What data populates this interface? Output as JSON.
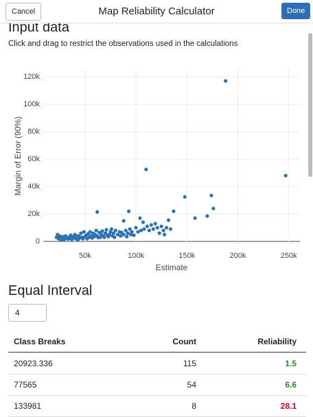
{
  "header": {
    "cancel": "Cancel",
    "title": "Map Reliability Calculator",
    "done": "Done"
  },
  "input_section": {
    "heading": "Input data",
    "instructions": "Click and drag to restrict the observations used in the calculations"
  },
  "chart_data": {
    "type": "scatter",
    "x_label": "Estimate",
    "y_label": "Margin of Error (90%)",
    "color": "#2c72b0",
    "grid": true,
    "xlim": [
      9000,
      261000
    ],
    "ylim": [
      -1500,
      126000
    ],
    "xticks": [
      {
        "value": 50000,
        "label": "50k"
      },
      {
        "value": 100000,
        "label": "100k"
      },
      {
        "value": 150000,
        "label": "150k"
      },
      {
        "value": 200000,
        "label": "200k"
      },
      {
        "value": 250000,
        "label": "250k"
      }
    ],
    "yticks": [
      0,
      {
        "value": 20000,
        "label": "20k"
      },
      {
        "value": 40000,
        "label": "40k"
      },
      {
        "value": 60000,
        "label": "60k"
      },
      {
        "value": 80000,
        "label": "80k"
      },
      {
        "value": 100000,
        "label": "100k"
      },
      {
        "value": 120000,
        "label": "120k"
      }
    ],
    "x": [
      22000,
      23000,
      24000,
      25000,
      26000,
      27000,
      28000,
      29000,
      30000,
      31000,
      32000,
      33000,
      34000,
      35000,
      36000,
      37000,
      38000,
      39000,
      40000,
      41000,
      42000,
      43000,
      44000,
      45000,
      46000,
      47000,
      48000,
      49000,
      50000,
      51000,
      52000,
      53000,
      54000,
      55000,
      56000,
      57000,
      58000,
      59000,
      60000,
      61000,
      62000,
      63000,
      64000,
      65000,
      66000,
      67000,
      68000,
      69000,
      70000,
      71000,
      72000,
      73000,
      74000,
      75000,
      76000,
      77000,
      78000,
      79000,
      80000,
      82000,
      84000,
      85000,
      86000,
      88000,
      90000,
      91000,
      92000,
      94000,
      95000,
      96000,
      98000,
      100000,
      102000,
      104000,
      105000,
      107000,
      108000,
      110000,
      111000,
      113000,
      115000,
      117000,
      119000,
      121000,
      123000,
      125000,
      127000,
      128000,
      130000,
      132000,
      134000,
      137000,
      148000,
      158000,
      170000,
      174000,
      176000,
      188000,
      247000,
      93000,
      62000,
      88000
    ],
    "y": [
      3000,
      5000,
      2000,
      4000,
      1500,
      2500,
      3500,
      1000,
      2000,
      4000,
      2800,
      1800,
      3000,
      2200,
      4500,
      1500,
      3200,
      2600,
      5000,
      2000,
      3800,
      1200,
      4000,
      2500,
      6000,
      3000,
      2000,
      7000,
      3500,
      4500,
      2000,
      5500,
      3000,
      7000,
      4000,
      2500,
      6000,
      3500,
      5000,
      8000,
      4000,
      2800,
      6500,
      3000,
      5000,
      7500,
      4000,
      3000,
      6000,
      8500,
      4500,
      3500,
      5000,
      7000,
      9000,
      4000,
      6000,
      3000,
      8000,
      5000,
      7000,
      4000,
      6500,
      5000,
      8000,
      3500,
      6000,
      9000,
      5000,
      7000,
      4500,
      10000,
      7000,
      17000,
      8000,
      14000,
      9000,
      52500,
      11000,
      8000,
      12000,
      9000,
      13000,
      10000,
      6000,
      11000,
      8000,
      5000,
      10000,
      15500,
      9000,
      22000,
      32500,
      17000,
      18500,
      33500,
      24000,
      117000,
      48000,
      22000,
      21500,
      15000
    ]
  },
  "classification": {
    "heading": "Equal Interval",
    "classes": 4,
    "table": {
      "columns": [
        "Class Breaks",
        "Count",
        "Reliability"
      ],
      "rows": [
        [
          "20923.336",
          115,
          1.5
        ],
        [
          "77565",
          54,
          6.6
        ],
        [
          "133981",
          8,
          28.1
        ]
      ],
      "reliability_colors": [
        "#2a8a2a",
        "#2a8a2a",
        "#c0001a"
      ]
    }
  }
}
